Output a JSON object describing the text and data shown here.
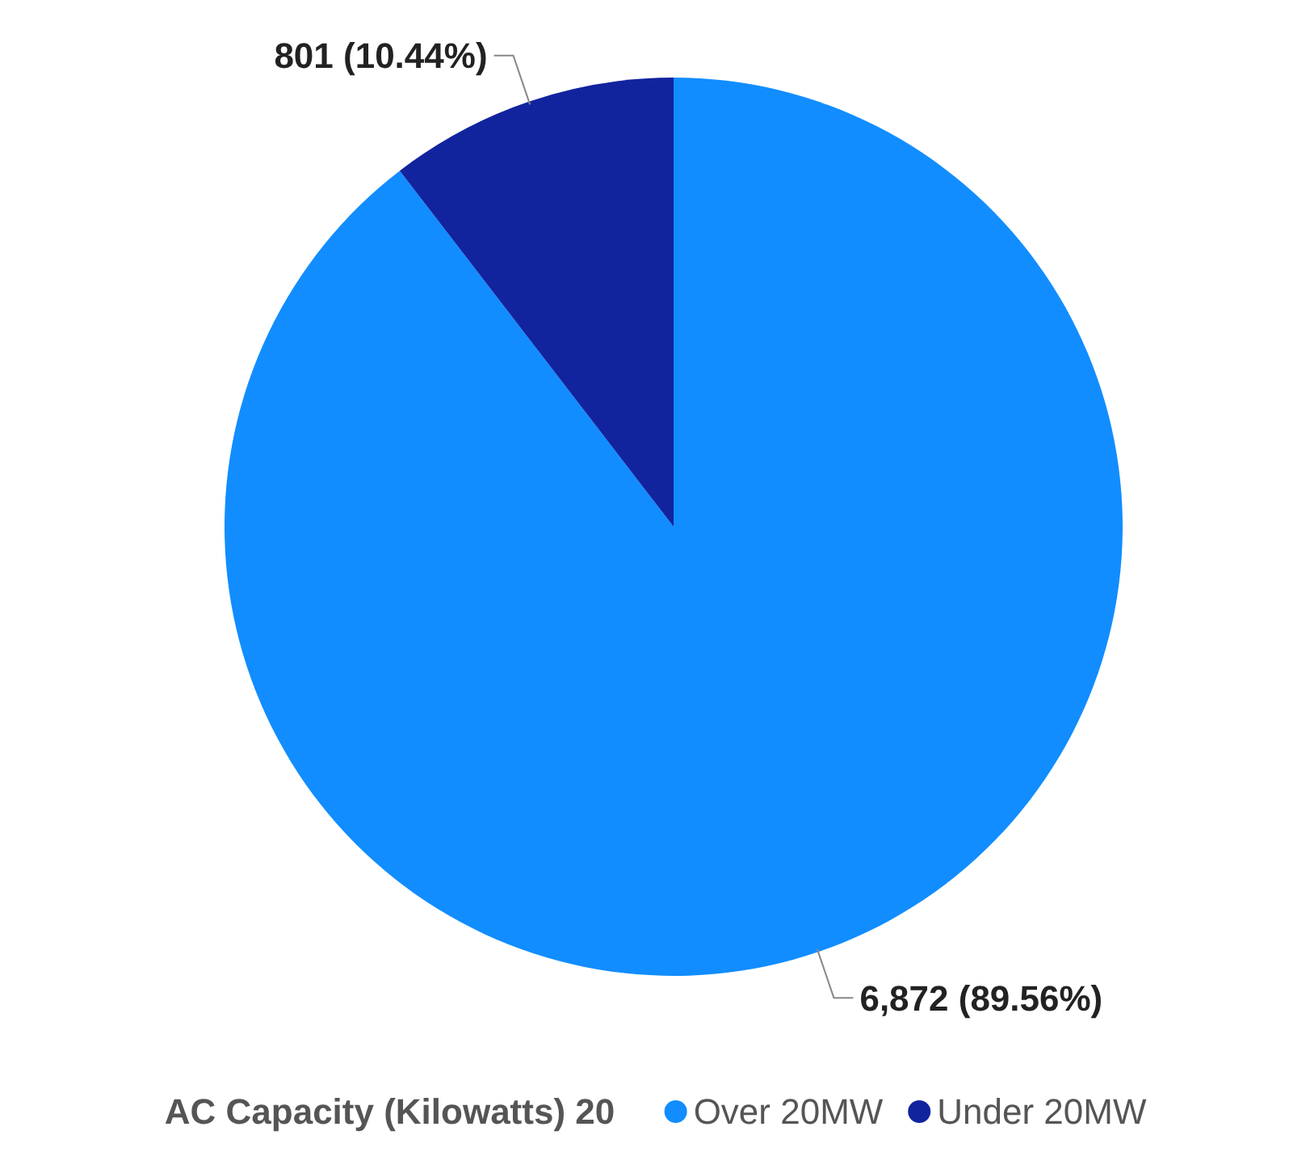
{
  "chart_data": {
    "type": "pie",
    "categories": [
      "Over 20MW",
      "Under 20MW"
    ],
    "values": [
      6872,
      801
    ],
    "colors": [
      "#118dff",
      "#12239e"
    ],
    "value_labels": [
      "6,872 (89.56%)",
      "801 (10.44%)"
    ],
    "legend": "bottom",
    "legend_title": "AC Capacity (Kilowatts) 20"
  }
}
